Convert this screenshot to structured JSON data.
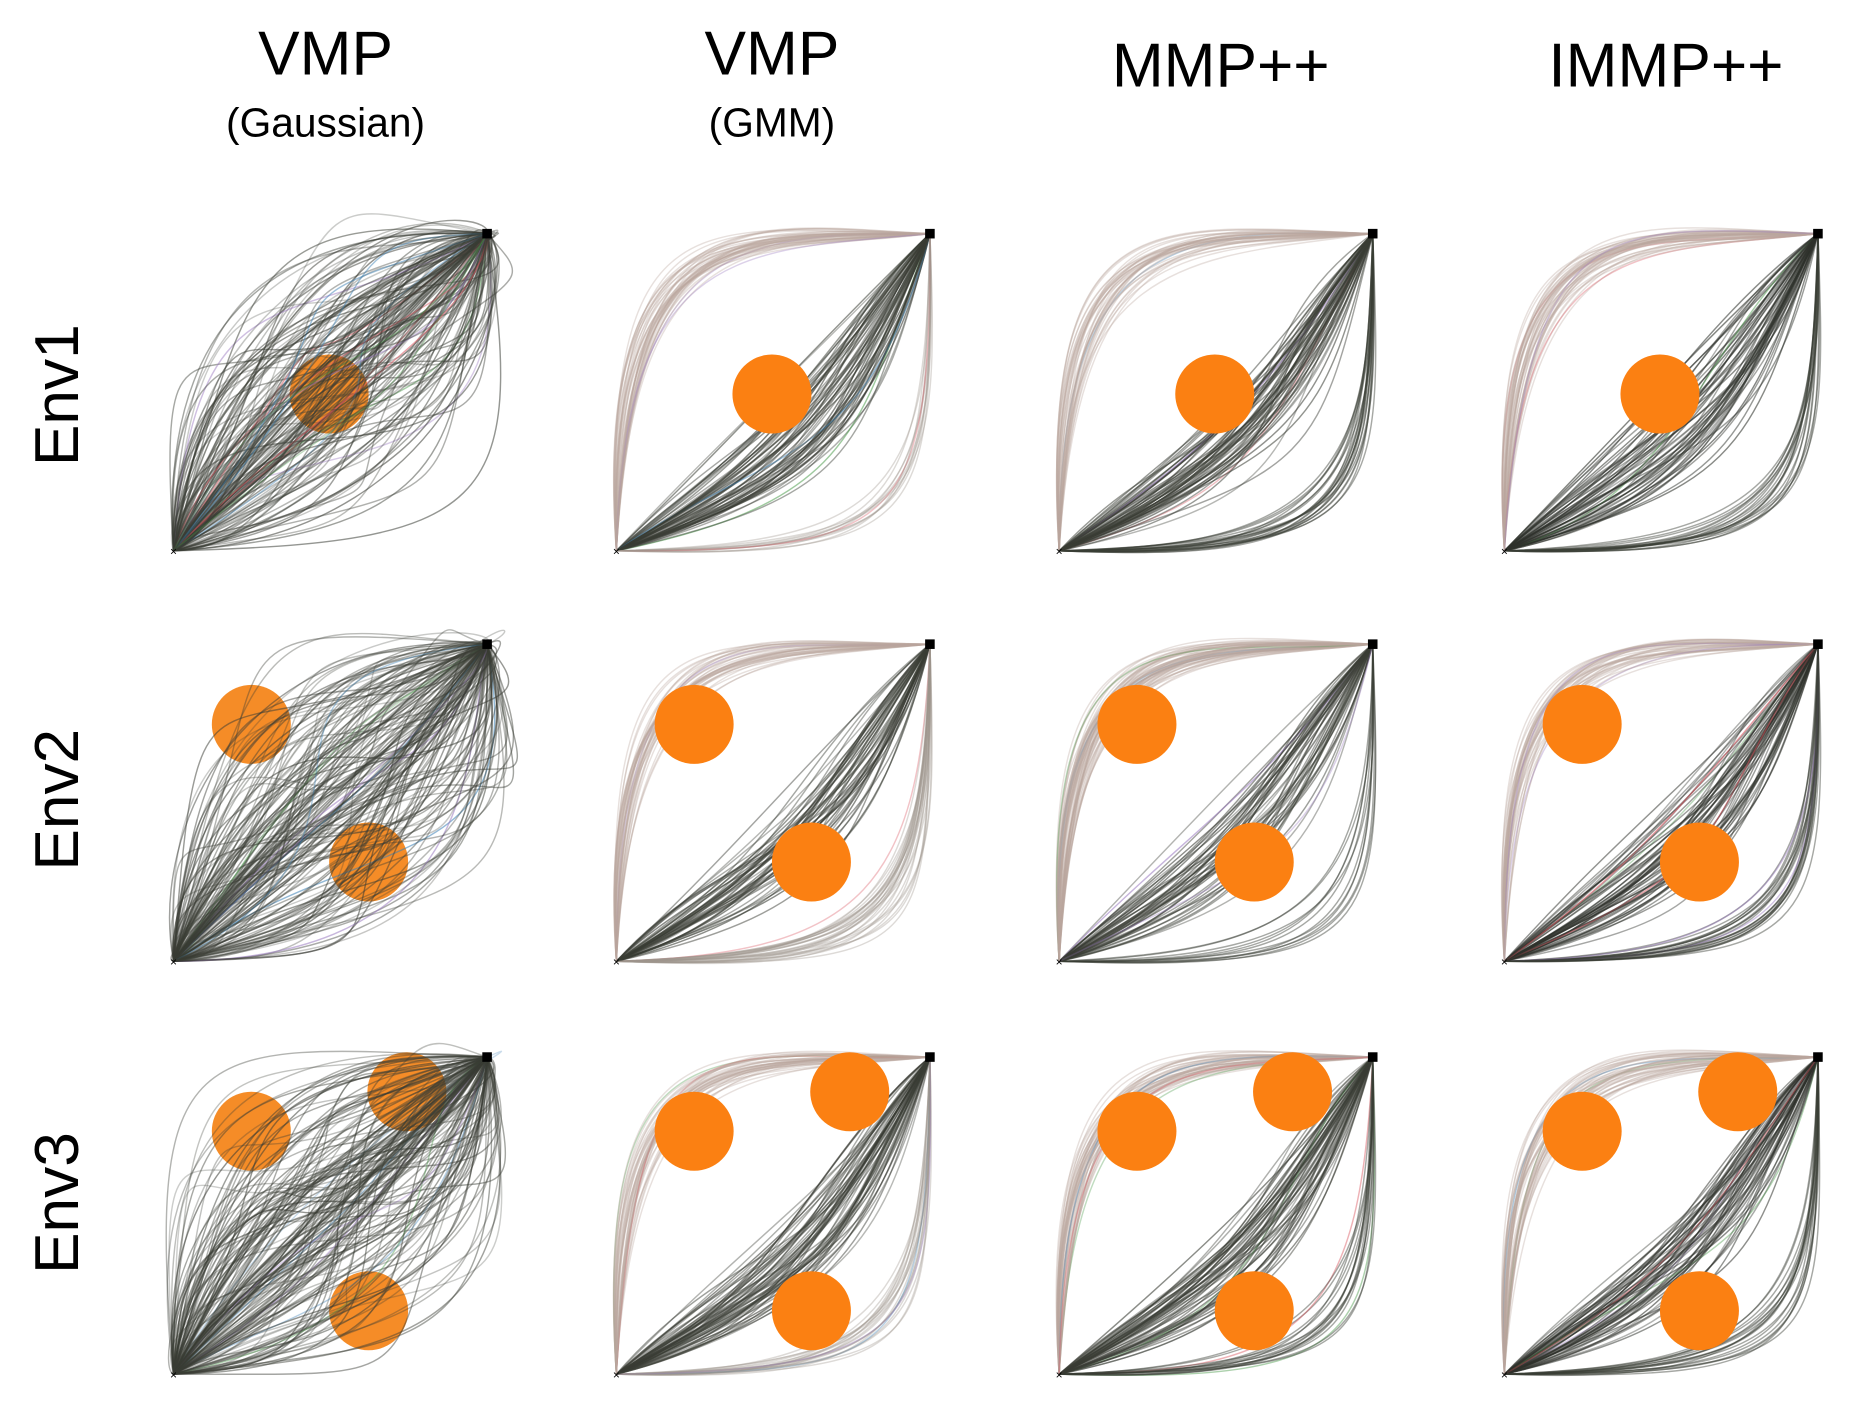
{
  "columns": [
    {
      "title": "VMP",
      "subtitle": "(Gaussian)"
    },
    {
      "title": "VMP",
      "subtitle": "(GMM)"
    },
    {
      "title": "MMP++"
    },
    {
      "title": "IMMP++"
    }
  ],
  "rows": [
    "Env1",
    "Env2",
    "Env3"
  ]
}
